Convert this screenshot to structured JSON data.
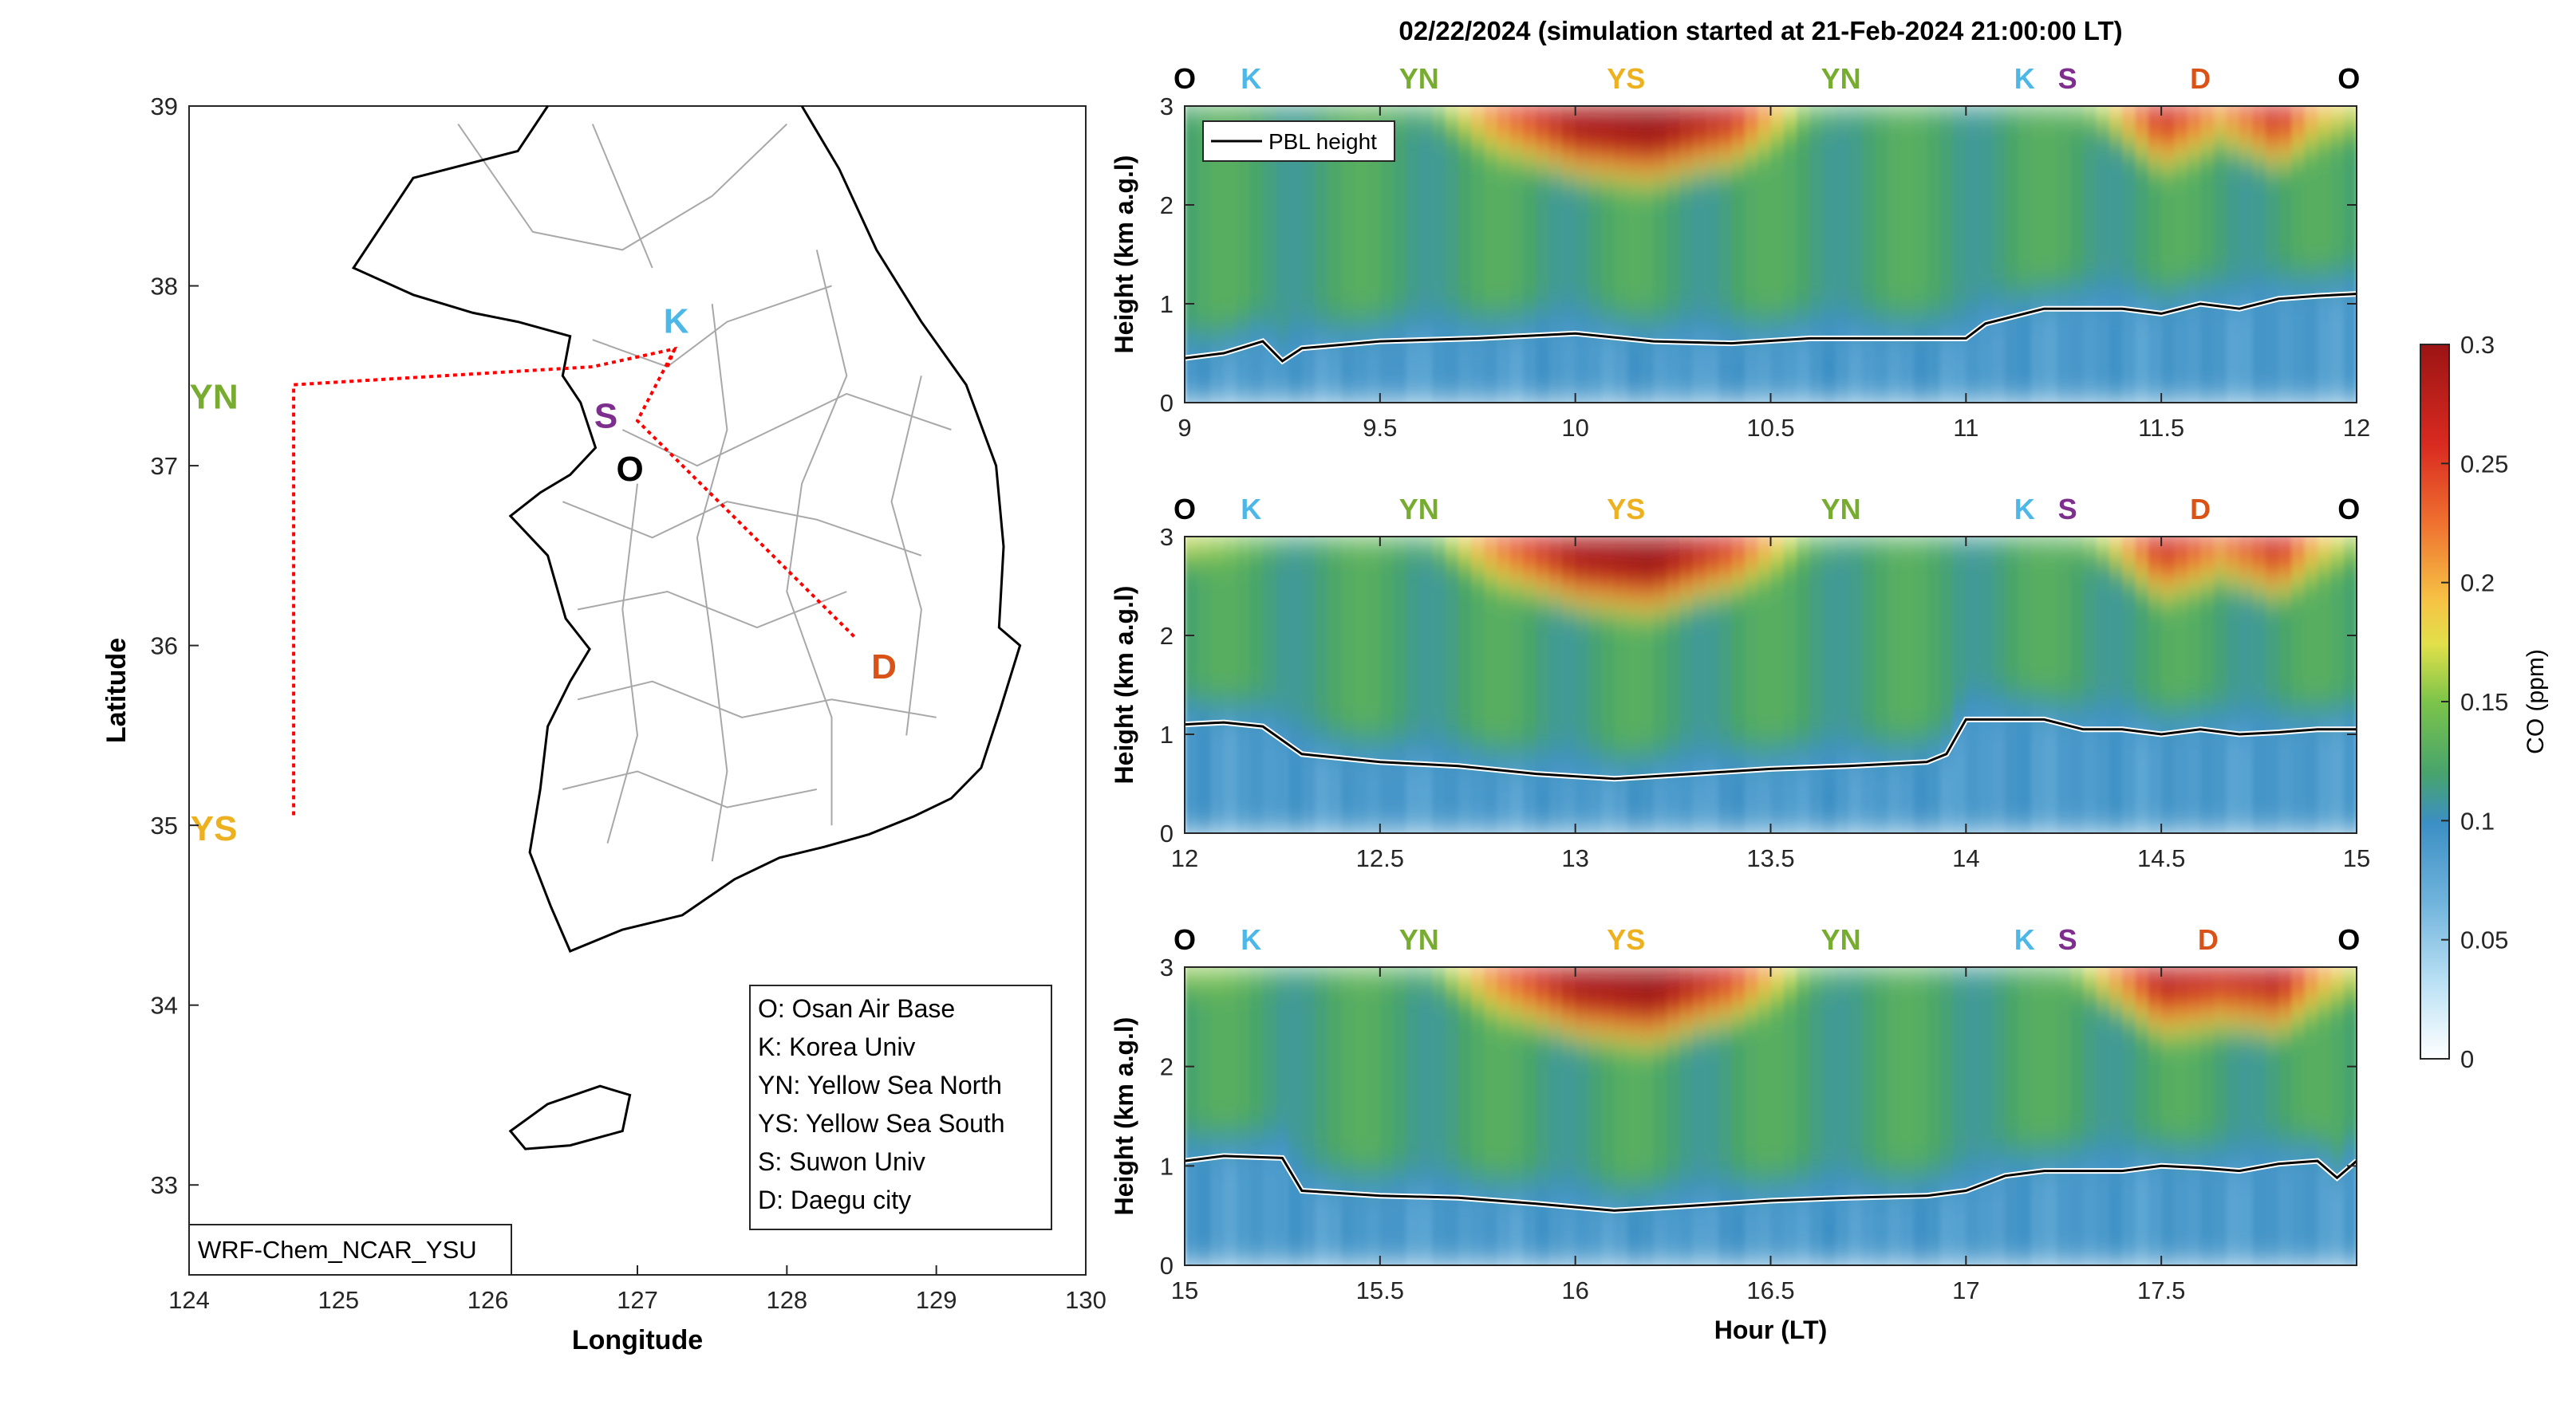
{
  "figure": {
    "title": "02/22/2024 (simulation started at 21-Feb-2024 21:00:00 LT)"
  },
  "map": {
    "xlabel": "Longitude",
    "ylabel": "Latitude",
    "xlim": [
      124,
      130
    ],
    "ylim": [
      32.5,
      39
    ],
    "xticks": [
      "124",
      "125",
      "126",
      "127",
      "128",
      "129",
      "130"
    ],
    "yticks": [
      "33",
      "34",
      "35",
      "36",
      "37",
      "38",
      "39"
    ],
    "model_label": "WRF-Chem_NCAR_YSU",
    "sites": [
      {
        "code": "O",
        "name": "Osan Air Base",
        "lon": 126.95,
        "lat": 37.05,
        "color": "#000000"
      },
      {
        "code": "K",
        "name": "Korea Univ",
        "lon": 127.1,
        "lat": 37.65,
        "color": "#4db8e8"
      },
      {
        "code": "YN",
        "name": "Yellow Sea North",
        "lon": 124.7,
        "lat": 37.45,
        "color": "#77ac30"
      },
      {
        "code": "YS",
        "name": "Yellow Sea South",
        "lon": 124.7,
        "lat": 35.05,
        "color": "#edb120"
      },
      {
        "code": "S",
        "name": "Suwon Univ",
        "lon": 126.95,
        "lat": 37.3,
        "color": "#7e2f8e"
      },
      {
        "code": "D",
        "name": "Daegu city",
        "lon": 128.5,
        "lat": 35.95,
        "color": "#d95319"
      }
    ],
    "legend": [
      "O: Osan Air Base",
      "K: Korea Univ",
      "YN: Yellow Sea North",
      "YS: Yellow Sea South",
      "S: Suwon Univ",
      "D: Daegu city"
    ],
    "route": [
      {
        "lon": 127.2,
        "lat": 37.55
      },
      {
        "lon": 127.25,
        "lat": 37.65
      },
      {
        "lon": 126.7,
        "lat": 37.55
      },
      {
        "lon": 124.7,
        "lat": 37.45
      },
      {
        "lon": 124.7,
        "lat": 35.05
      }
    ],
    "route2": [
      {
        "lon": 127.25,
        "lat": 37.65
      },
      {
        "lon": 127.0,
        "lat": 37.25
      },
      {
        "lon": 128.45,
        "lat": 36.05
      }
    ]
  },
  "chart_data": {
    "type": "heatmap",
    "colorbar": {
      "label": "CO (ppm)",
      "range": [
        0,
        0.3
      ],
      "ticks": [
        "0",
        "0.05",
        "0.1",
        "0.15",
        "0.2",
        "0.25",
        "0.3"
      ]
    },
    "ylabel": "Height (km a.g.l)",
    "xlabel": "Hour (LT)",
    "pbl_legend": "PBL height",
    "panels": [
      {
        "xlim": [
          9,
          12
        ],
        "ylim": [
          0,
          3
        ],
        "xticks": [
          "9",
          "9.5",
          "10",
          "10.5",
          "11",
          "11.5",
          "12"
        ],
        "yticks": [
          "0",
          "1",
          "2",
          "3"
        ],
        "site_labels": [
          {
            "code": "O",
            "x": 9.0,
            "color": "#000000"
          },
          {
            "code": "K",
            "x": 9.17,
            "color": "#4db8e8"
          },
          {
            "code": "YN",
            "x": 9.6,
            "color": "#77ac30"
          },
          {
            "code": "YS",
            "x": 10.13,
            "color": "#edb120"
          },
          {
            "code": "YN",
            "x": 10.68,
            "color": "#77ac30"
          },
          {
            "code": "K",
            "x": 11.15,
            "color": "#4db8e8"
          },
          {
            "code": "S",
            "x": 11.26,
            "color": "#7e2f8e"
          },
          {
            "code": "D",
            "x": 11.6,
            "color": "#d95319"
          },
          {
            "code": "O",
            "x": 11.98,
            "color": "#000000"
          }
        ],
        "pbl": [
          [
            9.0,
            0.45
          ],
          [
            9.1,
            0.5
          ],
          [
            9.2,
            0.62
          ],
          [
            9.25,
            0.42
          ],
          [
            9.3,
            0.55
          ],
          [
            9.5,
            0.62
          ],
          [
            9.75,
            0.65
          ],
          [
            10.0,
            0.7
          ],
          [
            10.2,
            0.62
          ],
          [
            10.4,
            0.6
          ],
          [
            10.6,
            0.65
          ],
          [
            10.8,
            0.65
          ],
          [
            11.0,
            0.65
          ],
          [
            11.05,
            0.8
          ],
          [
            11.2,
            0.95
          ],
          [
            11.4,
            0.95
          ],
          [
            11.5,
            0.9
          ],
          [
            11.6,
            1.0
          ],
          [
            11.7,
            0.95
          ],
          [
            11.8,
            1.05
          ],
          [
            11.9,
            1.08
          ],
          [
            12.0,
            1.1
          ]
        ],
        "free_trop": [
          [
            9.0,
            0.15
          ],
          [
            9.3,
            0.15
          ],
          [
            9.6,
            0.17
          ],
          [
            9.8,
            0.24
          ],
          [
            10.0,
            0.29
          ],
          [
            10.2,
            0.3
          ],
          [
            10.4,
            0.27
          ],
          [
            10.6,
            0.18
          ],
          [
            10.8,
            0.15
          ],
          [
            11.0,
            0.14
          ],
          [
            11.2,
            0.15
          ],
          [
            11.35,
            0.2
          ],
          [
            11.5,
            0.27
          ],
          [
            11.65,
            0.23
          ],
          [
            11.8,
            0.27
          ],
          [
            11.9,
            0.22
          ],
          [
            12.0,
            0.2
          ]
        ]
      },
      {
        "xlim": [
          12,
          15
        ],
        "ylim": [
          0,
          3
        ],
        "xticks": [
          "12",
          "12.5",
          "13",
          "13.5",
          "14",
          "14.5",
          "15"
        ],
        "yticks": [
          "0",
          "1",
          "2",
          "3"
        ],
        "site_labels": [
          {
            "code": "O",
            "x": 12.0,
            "color": "#000000"
          },
          {
            "code": "K",
            "x": 12.17,
            "color": "#4db8e8"
          },
          {
            "code": "YN",
            "x": 12.6,
            "color": "#77ac30"
          },
          {
            "code": "YS",
            "x": 13.13,
            "color": "#edb120"
          },
          {
            "code": "YN",
            "x": 13.68,
            "color": "#77ac30"
          },
          {
            "code": "K",
            "x": 14.15,
            "color": "#4db8e8"
          },
          {
            "code": "S",
            "x": 14.26,
            "color": "#7e2f8e"
          },
          {
            "code": "D",
            "x": 14.6,
            "color": "#d95319"
          },
          {
            "code": "O",
            "x": 14.98,
            "color": "#000000"
          }
        ],
        "pbl": [
          [
            12.0,
            1.1
          ],
          [
            12.1,
            1.12
          ],
          [
            12.2,
            1.08
          ],
          [
            12.3,
            0.8
          ],
          [
            12.5,
            0.72
          ],
          [
            12.7,
            0.68
          ],
          [
            12.9,
            0.6
          ],
          [
            13.1,
            0.55
          ],
          [
            13.3,
            0.6
          ],
          [
            13.5,
            0.65
          ],
          [
            13.7,
            0.68
          ],
          [
            13.9,
            0.72
          ],
          [
            13.95,
            0.8
          ],
          [
            14.0,
            1.15
          ],
          [
            14.2,
            1.15
          ],
          [
            14.3,
            1.05
          ],
          [
            14.4,
            1.05
          ],
          [
            14.5,
            1.0
          ],
          [
            14.6,
            1.05
          ],
          [
            14.7,
            1.0
          ],
          [
            14.8,
            1.02
          ],
          [
            14.9,
            1.05
          ],
          [
            15.0,
            1.05
          ]
        ],
        "free_trop": [
          [
            12.0,
            0.2
          ],
          [
            12.3,
            0.16
          ],
          [
            12.6,
            0.17
          ],
          [
            12.8,
            0.24
          ],
          [
            13.0,
            0.29
          ],
          [
            13.2,
            0.3
          ],
          [
            13.4,
            0.26
          ],
          [
            13.6,
            0.18
          ],
          [
            13.8,
            0.15
          ],
          [
            14.0,
            0.14
          ],
          [
            14.2,
            0.15
          ],
          [
            14.35,
            0.2
          ],
          [
            14.5,
            0.27
          ],
          [
            14.65,
            0.24
          ],
          [
            14.8,
            0.27
          ],
          [
            14.9,
            0.22
          ],
          [
            15.0,
            0.19
          ]
        ]
      },
      {
        "xlim": [
          15,
          18
        ],
        "ylim": [
          0,
          3
        ],
        "xticks": [
          "15",
          "15.5",
          "16",
          "16.5",
          "17",
          "17.5"
        ],
        "yticks": [
          "0",
          "1",
          "2",
          "3"
        ],
        "site_labels": [
          {
            "code": "O",
            "x": 15.0,
            "color": "#000000"
          },
          {
            "code": "K",
            "x": 15.17,
            "color": "#4db8e8"
          },
          {
            "code": "YN",
            "x": 15.6,
            "color": "#77ac30"
          },
          {
            "code": "YS",
            "x": 16.13,
            "color": "#edb120"
          },
          {
            "code": "YN",
            "x": 16.68,
            "color": "#77ac30"
          },
          {
            "code": "K",
            "x": 17.15,
            "color": "#4db8e8"
          },
          {
            "code": "S",
            "x": 17.26,
            "color": "#7e2f8e"
          },
          {
            "code": "D",
            "x": 17.62,
            "color": "#d95319"
          },
          {
            "code": "O",
            "x": 17.98,
            "color": "#000000"
          }
        ],
        "pbl": [
          [
            15.0,
            1.05
          ],
          [
            15.1,
            1.1
          ],
          [
            15.25,
            1.08
          ],
          [
            15.3,
            0.75
          ],
          [
            15.5,
            0.7
          ],
          [
            15.7,
            0.68
          ],
          [
            15.9,
            0.62
          ],
          [
            16.1,
            0.55
          ],
          [
            16.3,
            0.6
          ],
          [
            16.5,
            0.65
          ],
          [
            16.7,
            0.68
          ],
          [
            16.9,
            0.7
          ],
          [
            17.0,
            0.75
          ],
          [
            17.1,
            0.9
          ],
          [
            17.2,
            0.95
          ],
          [
            17.3,
            0.95
          ],
          [
            17.4,
            0.95
          ],
          [
            17.5,
            1.0
          ],
          [
            17.6,
            0.98
          ],
          [
            17.7,
            0.95
          ],
          [
            17.8,
            1.02
          ],
          [
            17.9,
            1.05
          ],
          [
            17.95,
            0.88
          ],
          [
            18.0,
            1.05
          ]
        ],
        "free_trop": [
          [
            15.0,
            0.19
          ],
          [
            15.3,
            0.16
          ],
          [
            15.6,
            0.17
          ],
          [
            15.8,
            0.24
          ],
          [
            16.0,
            0.29
          ],
          [
            16.2,
            0.3
          ],
          [
            16.4,
            0.26
          ],
          [
            16.6,
            0.18
          ],
          [
            16.8,
            0.15
          ],
          [
            17.0,
            0.14
          ],
          [
            17.2,
            0.15
          ],
          [
            17.35,
            0.22
          ],
          [
            17.5,
            0.28
          ],
          [
            17.65,
            0.27
          ],
          [
            17.8,
            0.28
          ],
          [
            17.9,
            0.23
          ],
          [
            18.0,
            0.2
          ]
        ]
      }
    ]
  }
}
